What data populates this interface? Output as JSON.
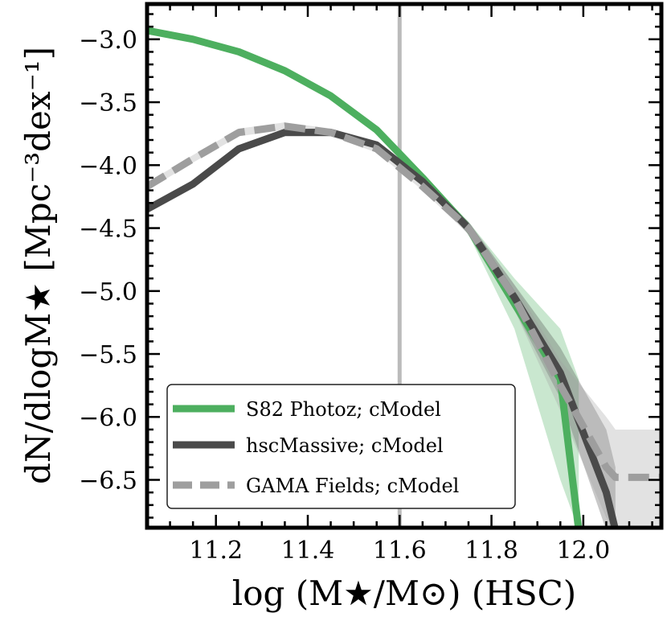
{
  "chart_data": {
    "type": "line",
    "xlabel": "log (M★/M⊙) (HSC)",
    "ylabel": "dN/dlogM★ [Mpc⁻³dex⁻¹]",
    "xlim": [
      11.05,
      12.17
    ],
    "ylim": [
      -6.88,
      -2.72
    ],
    "x_ticks": [
      11.2,
      11.4,
      11.6,
      11.8,
      12.0
    ],
    "x_tick_labels": [
      "11.2",
      "11.4",
      "11.6",
      "11.8",
      "12.0"
    ],
    "y_ticks": [
      -3.0,
      -3.5,
      -4.0,
      -4.5,
      -5.0,
      -5.5,
      -6.0,
      -6.5
    ],
    "y_tick_labels": [
      "−3.0",
      "−3.5",
      "−4.0",
      "−4.5",
      "−5.0",
      "−5.5",
      "−6.0",
      "−6.5"
    ],
    "vline_x": 11.6,
    "legend_position": "lower-left",
    "series": [
      {
        "name": "S82 Photoz; cModel",
        "color": "#4daf5f",
        "style": "solid",
        "x": [
          11.05,
          11.15,
          11.25,
          11.35,
          11.45,
          11.55,
          11.65,
          11.75,
          11.85,
          11.95,
          11.99
        ],
        "y": [
          -2.93,
          -3.0,
          -3.1,
          -3.25,
          -3.45,
          -3.72,
          -4.1,
          -4.5,
          -5.1,
          -5.7,
          -6.9
        ],
        "band_lower": [
          -2.95,
          -3.02,
          -3.12,
          -3.27,
          -3.47,
          -3.74,
          -4.13,
          -4.55,
          -5.3,
          -6.5,
          -6.9
        ],
        "band_upper": [
          -2.91,
          -2.98,
          -3.08,
          -3.23,
          -3.43,
          -3.7,
          -4.07,
          -4.45,
          -4.9,
          -5.3,
          -5.7
        ]
      },
      {
        "name": "hscMassive; cModel",
        "color": "#4a4a4a",
        "style": "solid",
        "x": [
          11.05,
          11.15,
          11.25,
          11.35,
          11.45,
          11.55,
          11.65,
          11.75,
          11.85,
          11.95,
          12.05,
          12.07
        ],
        "y": [
          -4.35,
          -4.15,
          -3.87,
          -3.74,
          -3.74,
          -3.84,
          -4.13,
          -4.5,
          -5.05,
          -5.65,
          -6.6,
          -6.9
        ],
        "band_lower": [
          -4.38,
          -4.18,
          -3.9,
          -3.77,
          -3.77,
          -3.87,
          -4.16,
          -4.55,
          -5.15,
          -5.85,
          -6.9,
          -6.9
        ],
        "band_upper": [
          -4.32,
          -4.12,
          -3.84,
          -3.71,
          -3.71,
          -3.81,
          -4.1,
          -4.45,
          -4.95,
          -5.45,
          -6.1,
          -6.4
        ]
      },
      {
        "name": "GAMA Fields; cModel",
        "color": "#9e9e9e",
        "style": "dashed",
        "x": [
          11.05,
          11.15,
          11.25,
          11.35,
          11.45,
          11.55,
          11.65,
          11.75,
          11.85,
          11.95,
          12.05,
          12.07,
          12.17
        ],
        "y": [
          -4.17,
          -3.95,
          -3.74,
          -3.69,
          -3.74,
          -3.87,
          -4.17,
          -4.5,
          -5.05,
          -5.75,
          -6.4,
          -6.48,
          -6.48
        ],
        "band_lower": [
          -4.2,
          -3.98,
          -3.77,
          -3.72,
          -3.77,
          -3.9,
          -4.2,
          -4.55,
          -5.15,
          -5.95,
          -6.8,
          -6.88,
          -6.88
        ],
        "band_upper": [
          -4.14,
          -3.92,
          -3.71,
          -3.66,
          -3.71,
          -3.84,
          -4.14,
          -4.45,
          -4.95,
          -5.55,
          -6.0,
          -6.1,
          -6.1
        ]
      }
    ]
  }
}
